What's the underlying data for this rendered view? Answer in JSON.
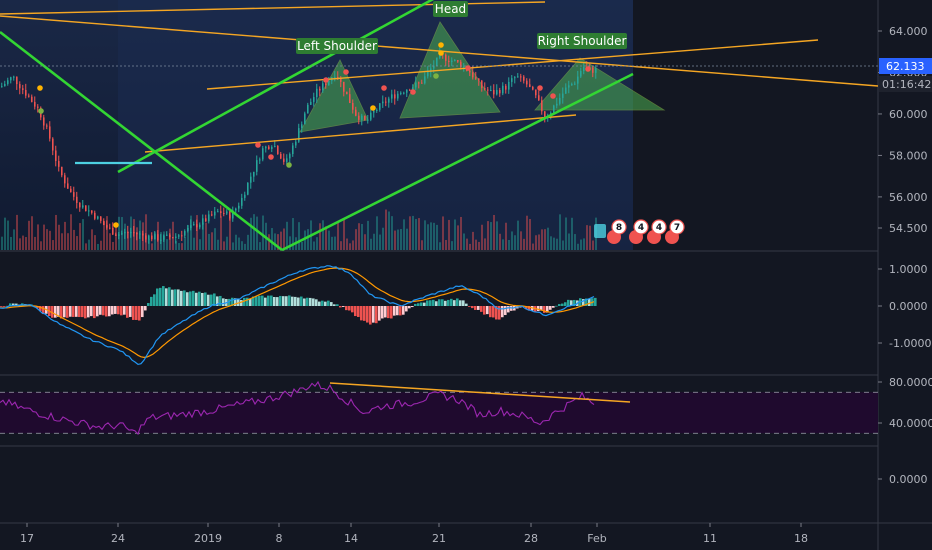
{
  "chart_data": [
    {
      "type": "candlestick",
      "panel": "price",
      "y_ticks": [
        "64.000",
        "62.000",
        "60.000",
        "58.000",
        "56.000",
        "54.500"
      ],
      "y_tick_values": [
        64.0,
        62.0,
        60.0,
        58.0,
        56.0,
        54.5
      ],
      "ylim": [
        54.0,
        65.0
      ],
      "last_price": "62.133",
      "countdown": "01:16:42",
      "pattern_labels": [
        "Left Shoulder",
        "Head",
        "Right Shoulder"
      ],
      "event_numbers": [
        "8",
        "4",
        "4",
        "7"
      ],
      "colors": {
        "up": "#26a69a",
        "down": "#ef5350",
        "pattern_fill": "#4caf50",
        "trendline": "#f5a623",
        "channel": "#33d633",
        "label_bg": "#2e7d32"
      }
    },
    {
      "type": "line",
      "panel": "macd",
      "y_ticks": [
        "1.0000",
        "0.0000",
        "-1.0000"
      ],
      "y_tick_values": [
        1.0,
        0.0,
        -1.0
      ],
      "ylim": [
        -1.8,
        1.4
      ],
      "colors": {
        "macd": "#2196f3",
        "signal": "#ff9800",
        "hist_up": "#26a69a",
        "hist_down": "#ef5350"
      }
    },
    {
      "type": "line",
      "panel": "rsi",
      "y_ticks": [
        "80.0000",
        "40.0000"
      ],
      "y_tick_values": [
        80,
        40
      ],
      "ylim": [
        20,
        85
      ],
      "bands": [
        70,
        30
      ],
      "colors": {
        "rsi": "#9c27b0",
        "band_fill": "#1f0a2e",
        "trendline": "#f5a623"
      }
    },
    {
      "type": "line",
      "panel": "empty",
      "y_ticks": [
        "0.0000"
      ],
      "y_tick_values": [
        0
      ]
    }
  ],
  "x_axis": {
    "labels": [
      "17",
      "24",
      "2019",
      "8",
      "14",
      "21",
      "28",
      "Feb",
      "11",
      "18"
    ]
  }
}
